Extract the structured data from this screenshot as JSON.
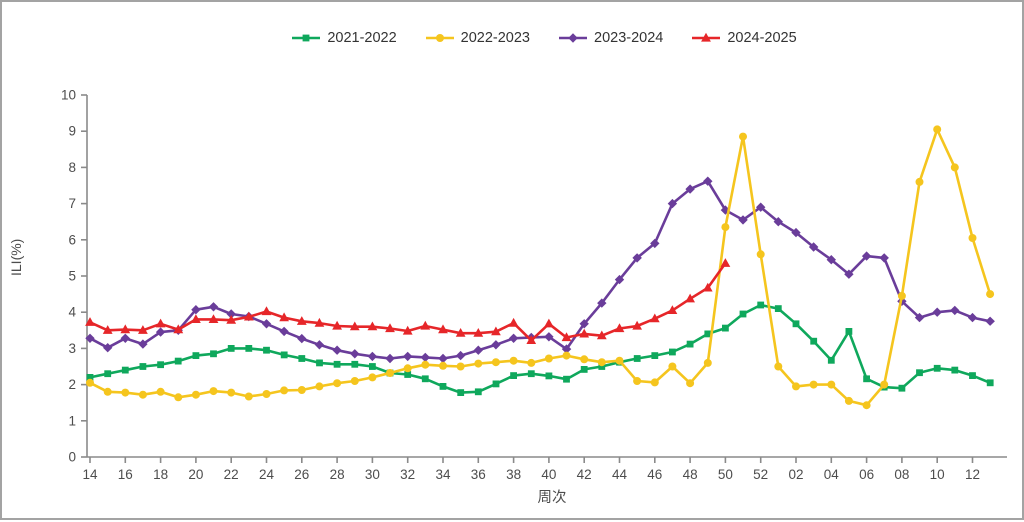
{
  "figure": {
    "background": "#ffffff",
    "border_color": "#a3a3a3",
    "axis_color": "#8a8a8a",
    "tick_text_color": "#4d4d4d"
  },
  "chart_data": {
    "type": "line",
    "title": "",
    "xlabel": "周次",
    "ylabel": "ILI(%)",
    "ylim": [
      0,
      10
    ],
    "y_ticks": [
      0,
      1,
      2,
      3,
      4,
      5,
      6,
      7,
      8,
      9,
      10
    ],
    "grid": false,
    "legend_position": "top",
    "categories": [
      "14",
      "15",
      "16",
      "17",
      "18",
      "19",
      "20",
      "21",
      "22",
      "23",
      "24",
      "25",
      "26",
      "27",
      "28",
      "29",
      "30",
      "31",
      "32",
      "33",
      "34",
      "35",
      "36",
      "37",
      "38",
      "39",
      "40",
      "41",
      "42",
      "43",
      "44",
      "45",
      "46",
      "47",
      "48",
      "49",
      "50",
      "51",
      "52",
      "01",
      "02",
      "03",
      "04",
      "05",
      "06",
      "07",
      "08",
      "09",
      "10",
      "11",
      "12",
      "13"
    ],
    "x_tick_labels": [
      "14",
      "16",
      "18",
      "20",
      "22",
      "24",
      "26",
      "28",
      "30",
      "32",
      "34",
      "36",
      "38",
      "40",
      "42",
      "44",
      "46",
      "48",
      "50",
      "52",
      "02",
      "04",
      "06",
      "08",
      "10",
      "12"
    ],
    "series": [
      {
        "name": "2021-2022",
        "color": "#0fa85c",
        "marker": "square",
        "values": [
          2.2,
          2.3,
          2.4,
          2.5,
          2.55,
          2.65,
          2.8,
          2.85,
          3.0,
          3.0,
          2.95,
          2.82,
          2.72,
          2.6,
          2.56,
          2.56,
          2.5,
          2.32,
          2.28,
          2.16,
          1.95,
          1.78,
          1.8,
          2.02,
          2.25,
          2.3,
          2.24,
          2.15,
          2.42,
          2.5,
          2.62,
          2.72,
          2.8,
          2.9,
          3.12,
          3.4,
          3.56,
          3.95,
          4.2,
          4.1,
          3.68,
          3.2,
          2.67,
          3.47,
          2.16,
          1.93,
          1.9,
          2.33,
          2.45,
          2.4,
          2.25,
          2.05
        ]
      },
      {
        "name": "2022-2023",
        "color": "#f5c51e",
        "marker": "circle",
        "values": [
          2.05,
          1.8,
          1.78,
          1.72,
          1.8,
          1.65,
          1.72,
          1.82,
          1.78,
          1.67,
          1.74,
          1.84,
          1.85,
          1.95,
          2.04,
          2.1,
          2.2,
          2.32,
          2.45,
          2.55,
          2.52,
          2.5,
          2.58,
          2.62,
          2.66,
          2.6,
          2.72,
          2.8,
          2.7,
          2.62,
          2.66,
          2.1,
          2.06,
          2.5,
          2.04,
          2.6,
          6.35,
          8.85,
          5.6,
          2.5,
          1.95,
          2.0,
          2.0,
          1.55,
          1.43,
          2.0,
          4.45,
          7.6,
          9.05,
          8.0,
          6.05,
          4.5
        ]
      },
      {
        "name": "2023-2024",
        "color": "#6a3d9a",
        "marker": "diamond",
        "values": [
          3.28,
          3.02,
          3.28,
          3.12,
          3.45,
          3.5,
          4.07,
          4.15,
          3.95,
          3.88,
          3.68,
          3.47,
          3.27,
          3.1,
          2.95,
          2.85,
          2.78,
          2.72,
          2.78,
          2.75,
          2.72,
          2.8,
          2.95,
          3.1,
          3.28,
          3.3,
          3.32,
          2.98,
          3.68,
          4.25,
          4.9,
          5.5,
          5.9,
          7.0,
          7.4,
          7.62,
          6.82,
          6.55,
          6.9,
          6.5,
          6.2,
          5.8,
          5.45,
          5.05,
          5.55,
          5.5,
          4.3,
          3.85,
          4.0,
          4.05,
          3.85,
          3.75
        ]
      },
      {
        "name": "2024-2025",
        "color": "#e62629",
        "marker": "triangle",
        "values": [
          3.72,
          3.5,
          3.52,
          3.5,
          3.68,
          3.52,
          3.8,
          3.8,
          3.78,
          3.87,
          4.02,
          3.85,
          3.75,
          3.7,
          3.62,
          3.6,
          3.6,
          3.55,
          3.48,
          3.62,
          3.52,
          3.42,
          3.42,
          3.46,
          3.7,
          3.22,
          3.68,
          3.3,
          3.4,
          3.35,
          3.55,
          3.62,
          3.82,
          4.05,
          4.37,
          4.67,
          5.35,
          null,
          null,
          null,
          null,
          null,
          null,
          null,
          null,
          null,
          null,
          null,
          null,
          null,
          null,
          null
        ]
      }
    ]
  }
}
